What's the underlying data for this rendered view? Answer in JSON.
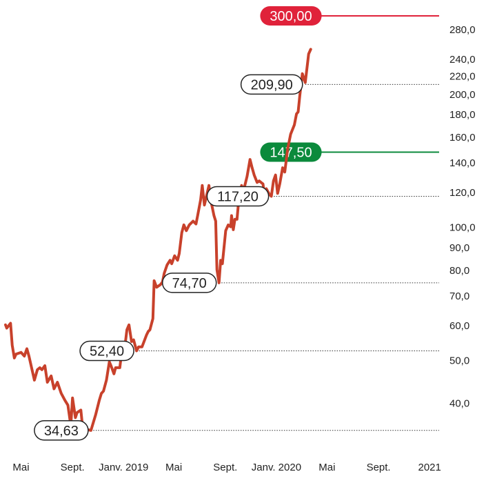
{
  "chart_data": {
    "type": "line",
    "scale": "log",
    "ylim": [
      33.5,
      300
    ],
    "y_ticks": [
      {
        "value": 40,
        "label": "40,0"
      },
      {
        "value": 50,
        "label": "50,0"
      },
      {
        "value": 60,
        "label": "60,0"
      },
      {
        "value": 70,
        "label": "70,0"
      },
      {
        "value": 80,
        "label": "80,0"
      },
      {
        "value": 90,
        "label": "90,0"
      },
      {
        "value": 100,
        "label": "100,0"
      },
      {
        "value": 120,
        "label": "120,0"
      },
      {
        "value": 140,
        "label": "140,0"
      },
      {
        "value": 160,
        "label": "160,0"
      },
      {
        "value": 180,
        "label": "180,0"
      },
      {
        "value": 200,
        "label": "200,0"
      },
      {
        "value": 220,
        "label": "220,0"
      },
      {
        "value": 240,
        "label": "240,0"
      },
      {
        "value": 280,
        "label": "280,0"
      }
    ],
    "x_ticks": [
      {
        "date": "2018-05-01",
        "label": "Mai"
      },
      {
        "date": "2018-09-01",
        "label": "Sept."
      },
      {
        "date": "2019-01-01",
        "label": "Janv. 2019"
      },
      {
        "date": "2019-05-01",
        "label": "Mai"
      },
      {
        "date": "2019-09-01",
        "label": "Sept."
      },
      {
        "date": "2020-01-01",
        "label": "Janv. 2020"
      },
      {
        "date": "2020-05-01",
        "label": "Mai"
      },
      {
        "date": "2020-09-01",
        "label": "Sept."
      },
      {
        "date": "2021-01-01",
        "label": "2021"
      }
    ],
    "xlim": [
      "2018-03-25",
      "2021-01-04"
    ],
    "series": [
      {
        "color": "#c8412b",
        "points": [
          [
            "2018-03-25",
            60.0
          ],
          [
            "2018-03-28",
            59.0
          ],
          [
            "2018-04-06",
            60.5
          ],
          [
            "2018-04-10",
            54.0
          ],
          [
            "2018-04-15",
            50.5
          ],
          [
            "2018-04-19",
            51.5
          ],
          [
            "2018-05-01",
            52.0
          ],
          [
            "2018-05-09",
            51.0
          ],
          [
            "2018-05-15",
            53.0
          ],
          [
            "2018-05-20",
            51.0
          ],
          [
            "2018-06-02",
            45.0
          ],
          [
            "2018-06-09",
            47.5
          ],
          [
            "2018-06-15",
            48.0
          ],
          [
            "2018-06-20",
            47.5
          ],
          [
            "2018-06-27",
            48.5
          ],
          [
            "2018-07-03",
            44.5
          ],
          [
            "2018-07-12",
            46.0
          ],
          [
            "2018-07-19",
            43.0
          ],
          [
            "2018-07-27",
            44.5
          ],
          [
            "2018-08-05",
            42.0
          ],
          [
            "2018-08-14",
            40.5
          ],
          [
            "2018-08-21",
            39.5
          ],
          [
            "2018-08-28",
            35.5
          ],
          [
            "2018-09-01",
            41.0
          ],
          [
            "2018-09-08",
            37.0
          ],
          [
            "2018-09-12",
            38.0
          ],
          [
            "2018-09-21",
            38.5
          ],
          [
            "2018-09-26",
            34.6
          ],
          [
            "2018-10-01",
            35.5
          ],
          [
            "2018-10-06",
            34.8
          ],
          [
            "2018-10-15",
            34.63
          ],
          [
            "2018-10-26",
            37.5
          ],
          [
            "2018-11-04",
            40.5
          ],
          [
            "2018-11-09",
            42.0
          ],
          [
            "2018-11-14",
            42.5
          ],
          [
            "2018-11-21",
            45.0
          ],
          [
            "2018-11-28",
            49.5
          ],
          [
            "2018-12-02",
            48.5
          ],
          [
            "2018-12-09",
            46.5
          ],
          [
            "2018-12-13",
            48.0
          ],
          [
            "2018-12-23",
            48.0
          ],
          [
            "2018-12-28",
            52.5
          ],
          [
            "2019-01-04",
            53.5
          ],
          [
            "2019-01-09",
            58.5
          ],
          [
            "2019-01-14",
            60.0
          ],
          [
            "2019-01-20",
            55.0
          ],
          [
            "2019-01-25",
            55.5
          ],
          [
            "2019-02-01",
            52.4
          ],
          [
            "2019-02-06",
            53.5
          ],
          [
            "2019-02-14",
            53.5
          ],
          [
            "2019-02-25",
            57.0
          ],
          [
            "2019-03-01",
            58.0
          ],
          [
            "2019-03-05",
            58.5
          ],
          [
            "2019-03-12",
            62.0
          ],
          [
            "2019-03-15",
            75.5
          ],
          [
            "2019-03-21",
            73.0
          ],
          [
            "2019-03-30",
            74.0
          ],
          [
            "2019-04-04",
            75.0
          ],
          [
            "2019-04-08",
            78.5
          ],
          [
            "2019-04-15",
            82.0
          ],
          [
            "2019-04-22",
            84.0
          ],
          [
            "2019-04-26",
            82.5
          ],
          [
            "2019-05-03",
            86.0
          ],
          [
            "2019-05-10",
            84.0
          ],
          [
            "2019-05-14",
            87.0
          ],
          [
            "2019-05-20",
            97.0
          ],
          [
            "2019-05-25",
            101.0
          ],
          [
            "2019-05-31",
            98.0
          ],
          [
            "2019-06-07",
            101.0
          ],
          [
            "2019-06-16",
            103.0
          ],
          [
            "2019-06-23",
            101.5
          ],
          [
            "2019-06-27",
            106.0
          ],
          [
            "2019-07-04",
            115.0
          ],
          [
            "2019-07-08",
            124.0
          ],
          [
            "2019-07-13",
            112.0
          ],
          [
            "2019-07-24",
            124.0
          ],
          [
            "2019-07-29",
            114.0
          ],
          [
            "2019-08-05",
            106.0
          ],
          [
            "2019-08-09",
            103.0
          ],
          [
            "2019-08-12",
            80.0
          ],
          [
            "2019-08-17",
            74.7
          ],
          [
            "2019-08-21",
            84.0
          ],
          [
            "2019-08-25",
            82.5
          ],
          [
            "2019-09-02",
            98.0
          ],
          [
            "2019-09-08",
            101.0
          ],
          [
            "2019-09-14",
            100.0
          ],
          [
            "2019-09-16",
            106.0
          ],
          [
            "2019-09-20",
            98.5
          ],
          [
            "2019-09-24",
            104.0
          ],
          [
            "2019-09-29",
            104.0
          ],
          [
            "2019-10-04",
            117.5
          ],
          [
            "2019-10-10",
            124.0
          ],
          [
            "2019-10-13",
            119.0
          ],
          [
            "2019-10-23",
            130.0
          ],
          [
            "2019-10-30",
            142.0
          ],
          [
            "2019-11-04",
            136.0
          ],
          [
            "2019-11-09",
            131.0
          ],
          [
            "2019-11-16",
            126.0
          ],
          [
            "2019-11-21",
            127.0
          ],
          [
            "2019-11-30",
            125.0
          ],
          [
            "2019-12-03",
            119.0
          ],
          [
            "2019-12-08",
            122.0
          ],
          [
            "2019-12-15",
            118.5
          ],
          [
            "2019-12-20",
            117.2
          ],
          [
            "2019-12-25",
            127.0
          ],
          [
            "2019-12-30",
            131.0
          ],
          [
            "2020-01-04",
            119.0
          ],
          [
            "2020-01-09",
            125.0
          ],
          [
            "2020-01-16",
            136.0
          ],
          [
            "2020-01-21",
            133.0
          ],
          [
            "2020-01-28",
            150.0
          ],
          [
            "2020-02-04",
            162.0
          ],
          [
            "2020-02-13",
            170.0
          ],
          [
            "2020-02-18",
            180.0
          ],
          [
            "2020-02-22",
            182.0
          ],
          [
            "2020-02-26",
            198.0
          ],
          [
            "2020-03-03",
            222.0
          ],
          [
            "2020-03-10",
            212.0
          ],
          [
            "2020-03-16",
            237.0
          ],
          [
            "2020-03-18",
            246.0
          ],
          [
            "2020-03-23",
            252.0
          ]
        ]
      }
    ],
    "levels": [
      {
        "value": 34.63,
        "label": "34,63",
        "x_from": "2018-10-15"
      },
      {
        "value": 52.4,
        "label": "52,40",
        "x_from": "2019-02-01"
      },
      {
        "value": 74.7,
        "label": "74,70",
        "x_from": "2019-08-17"
      },
      {
        "value": 117.2,
        "label": "117,20",
        "x_from": "2019-12-20"
      },
      {
        "value": 209.9,
        "label": "209,90",
        "x_from": "2020-03-10"
      }
    ],
    "targets": [
      {
        "value": 147.5,
        "label": "147,50",
        "color": "#0b8a3c"
      },
      {
        "value": 300.0,
        "label": "300,00",
        "color": "#e0223a"
      }
    ]
  }
}
